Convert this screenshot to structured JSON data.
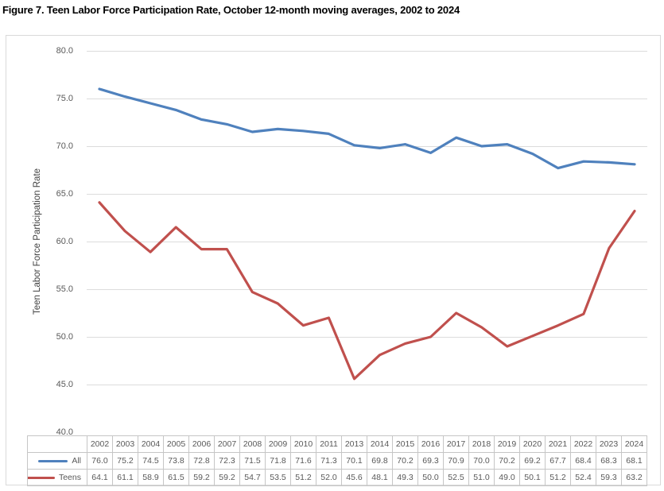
{
  "figure": {
    "title": "Figure 7. Teen Labor Force Participation Rate, October 12-month moving averages, 2002 to 2024"
  },
  "chart_data": {
    "type": "line",
    "title": "Figure 7. Teen Labor Force Participation Rate, October 12-month moving averages, 2002 to 2024",
    "xlabel": "",
    "ylabel": "Teen Labor Force Participation Rate",
    "ylim": [
      40.0,
      80.0
    ],
    "ytick_labels": [
      "80.0",
      "75.0",
      "70.0",
      "65.0",
      "60.0",
      "55.0",
      "50.0",
      "45.0",
      "40.0"
    ],
    "grid": "horizontal-only",
    "gridline_color": "#DCDCDC",
    "legend_position": "data-table-left",
    "categories": [
      "2002",
      "2003",
      "2004",
      "2005",
      "2006",
      "2007",
      "2008",
      "2009",
      "2010",
      "2011",
      "2013",
      "2014",
      "2015",
      "2016",
      "2017",
      "2018",
      "2019",
      "2020",
      "2021",
      "2022",
      "2023",
      "2024"
    ],
    "series": [
      {
        "name": "All",
        "color": "#4F81BD",
        "values": [
          76.0,
          75.2,
          74.5,
          73.8,
          72.8,
          72.3,
          71.5,
          71.8,
          71.6,
          71.3,
          70.1,
          69.8,
          70.2,
          69.3,
          70.9,
          70.0,
          70.2,
          69.2,
          67.7,
          68.4,
          68.3,
          68.1
        ]
      },
      {
        "name": "Teens",
        "color": "#C0504D",
        "values": [
          64.1,
          61.1,
          58.9,
          61.5,
          59.2,
          59.2,
          54.7,
          53.5,
          51.2,
          52.0,
          45.6,
          48.1,
          49.3,
          50.0,
          52.5,
          51.0,
          49.0,
          50.1,
          51.2,
          52.4,
          59.3,
          63.2
        ]
      }
    ]
  }
}
